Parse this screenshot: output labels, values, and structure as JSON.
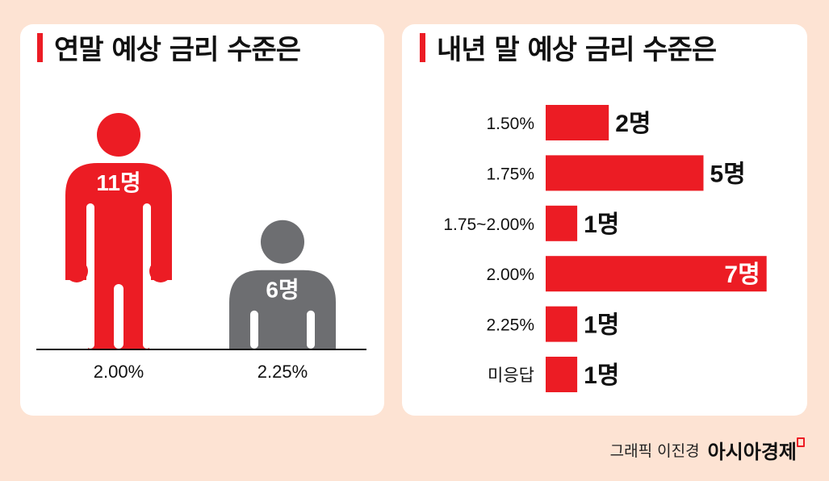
{
  "left_chart": {
    "title": "연말 예상 금리 수준은",
    "chart_data": {
      "type": "bar",
      "style": "pictogram",
      "categories": [
        "2.00%",
        "2.25%"
      ],
      "values": [
        11,
        6
      ],
      "labels": [
        "11명",
        "6명"
      ],
      "colors": [
        "#ec1c24",
        "#6d6e71"
      ]
    }
  },
  "right_chart": {
    "title": "내년 말 예상 금리 수준은",
    "chart_data": {
      "type": "bar",
      "orientation": "horizontal",
      "categories": [
        "1.50%",
        "1.75%",
        "1.75~2.00%",
        "2.00%",
        "2.25%",
        "미응답"
      ],
      "values": [
        2,
        5,
        1,
        7,
        1,
        1
      ],
      "labels": [
        "2명",
        "5명",
        "1명",
        "7명",
        "1명",
        "1명"
      ],
      "color": "#ec1c24"
    }
  },
  "credit": {
    "byline": "그래픽 이진경",
    "logo": "아시아경제"
  },
  "colors": {
    "accent": "#ec1c24",
    "gray": "#6d6e71",
    "background": "#fde3d3"
  }
}
